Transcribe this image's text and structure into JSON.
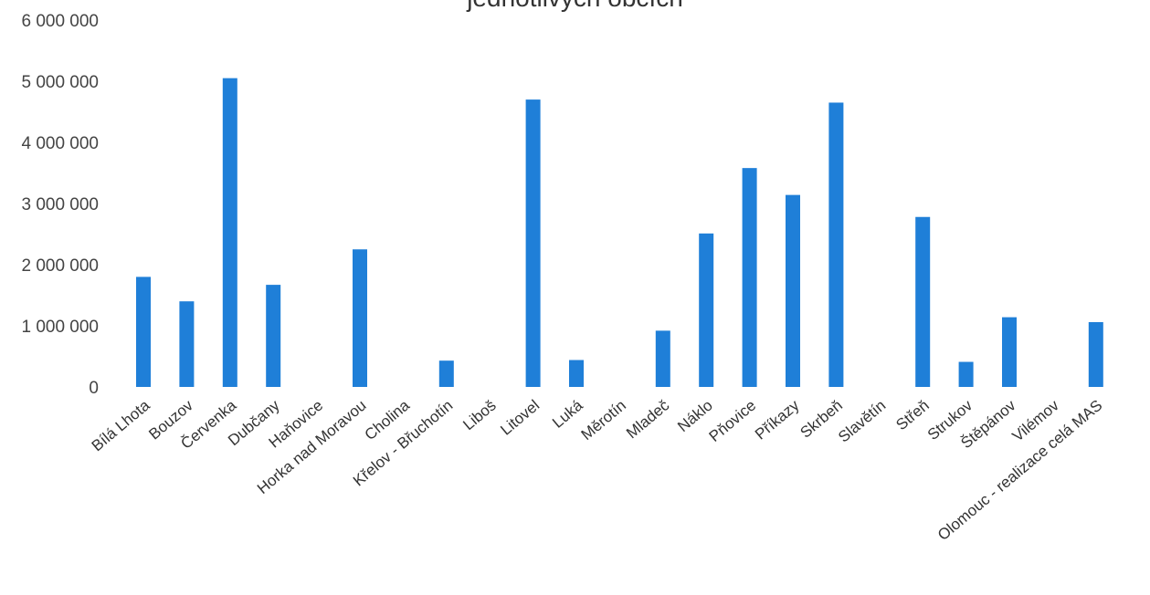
{
  "chart_data": {
    "type": "bar",
    "title": "jednotlivých obcích",
    "xlabel": "",
    "ylabel": "",
    "ylim": [
      0,
      6000000
    ],
    "yticks": [
      0,
      1000000,
      2000000,
      3000000,
      4000000,
      5000000,
      6000000
    ],
    "ytick_labels": [
      "0",
      "1 000 000",
      "2 000 000",
      "3 000 000",
      "4 000 000",
      "5 000 000",
      "6 000 000"
    ],
    "grid": false,
    "legend": "none",
    "bar_color": "#1f7fd8",
    "categories": [
      "Bílá Lhota",
      "Bouzov",
      "Červenka",
      "Dubčany",
      "Haňovice",
      "Horka nad Moravou",
      "Cholina",
      "Křelov - Břuchotín",
      "Liboš",
      "Litovel",
      "Luká",
      "Měrotín",
      "Mladeč",
      "Náklo",
      "Pňovice",
      "Příkazy",
      "Skrbeň",
      "Slavětín",
      "Střeň",
      "Strukov",
      "Štěpánov",
      "Vilémov",
      "Olomouc - realizace celá MAS"
    ],
    "values": [
      1800000,
      1400000,
      5050000,
      1670000,
      0,
      2250000,
      0,
      430000,
      0,
      4700000,
      440000,
      0,
      920000,
      2510000,
      3580000,
      3140000,
      4650000,
      0,
      2780000,
      410000,
      1140000,
      0,
      1060000
    ]
  }
}
